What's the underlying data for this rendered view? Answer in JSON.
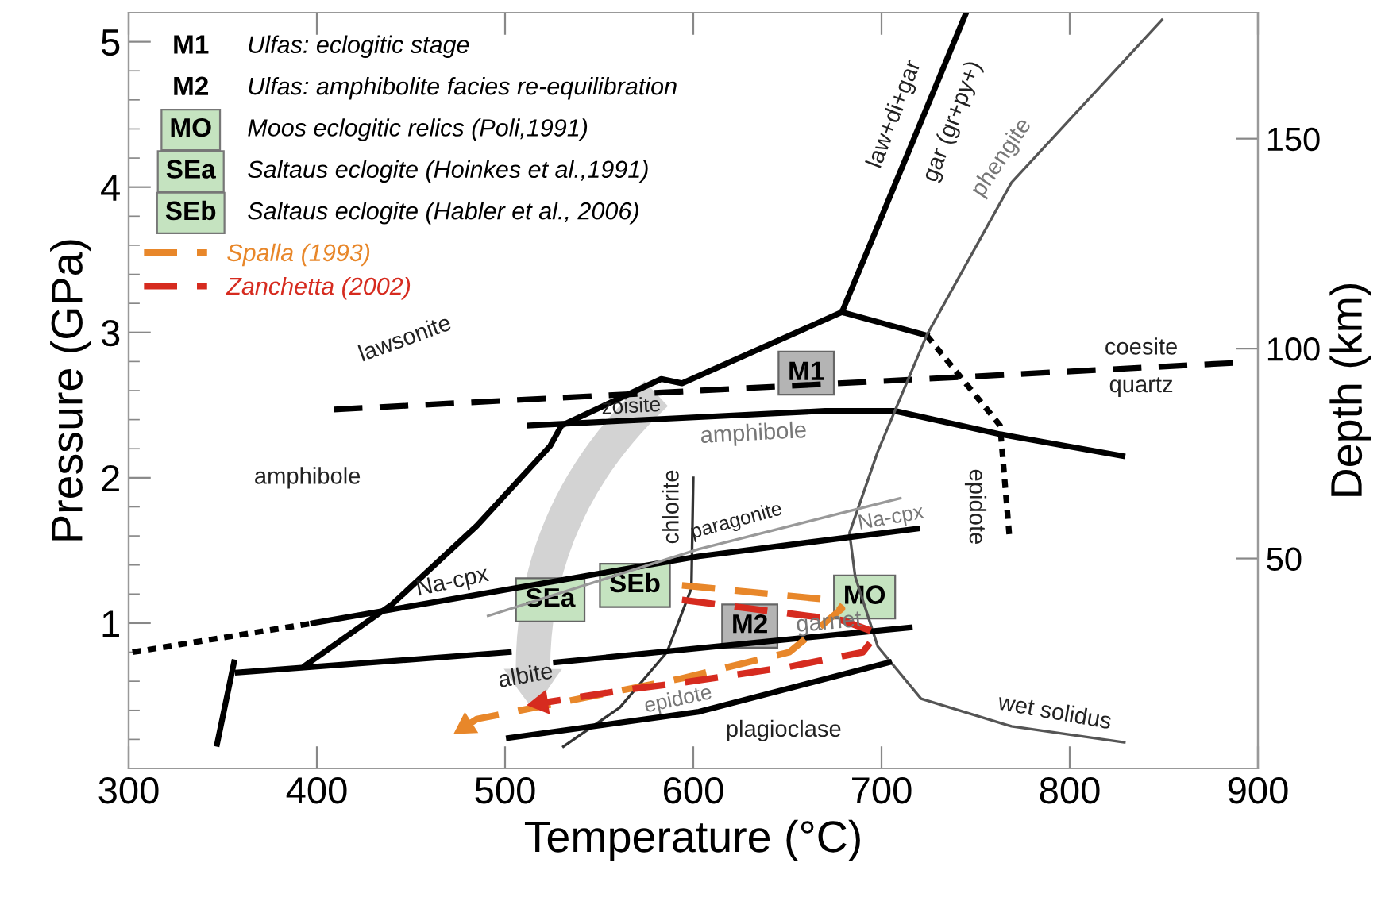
{
  "chart_data": {
    "type": "line",
    "xlabel": "Temperature (°C)",
    "ylabel": "Pressure (GPa)",
    "y2label": "Depth (km)",
    "xlim": [
      300,
      900
    ],
    "xticks": [
      300,
      400,
      500,
      600,
      700,
      800,
      900
    ],
    "ylim": [
      0,
      5.2
    ],
    "yticks": [
      1,
      2,
      3,
      4,
      5
    ],
    "y2lim": [
      0,
      180
    ],
    "y2ticks": [
      50,
      100,
      150
    ],
    "grid": false,
    "legend": "top left",
    "series": [
      {
        "color": "#000000",
        "line_style": "solid",
        "x": [
          394,
          440,
          485,
          524,
          530,
          583,
          594,
          679
        ],
        "values": [
          0.71,
          1.13,
          1.67,
          2.22,
          2.36,
          2.68,
          2.65,
          3.14
        ]
      },
      {
        "color": "#000000",
        "line_style": "solid",
        "x": [
          679,
          745
        ],
        "values": [
          3.14,
          5.2
        ]
      },
      {
        "color": "#000000",
        "line_style": "solid",
        "x": [
          679,
          724
        ],
        "values": [
          3.14,
          2.98
        ]
      },
      {
        "color": "#000000",
        "line_style": "dotted",
        "x": [
          724,
          763,
          768
        ],
        "values": [
          2.98,
          2.36,
          1.59
        ]
      },
      {
        "color": "#000000",
        "line_style": "solid",
        "x": [
          513,
          670,
          707,
          763,
          828
        ],
        "values": [
          2.36,
          2.46,
          2.46,
          2.3,
          2.15
        ]
      },
      {
        "color": "#000000",
        "line_style": "dashed",
        "x": [
          409,
          887
        ],
        "values": [
          2.47,
          2.79
        ]
      },
      {
        "color": "#555555",
        "line_style": "solid",
        "x": [
          849,
          769,
          724,
          698,
          683,
          686,
          698,
          721,
          769,
          829
        ],
        "values": [
          5.15,
          4.03,
          2.98,
          2.18,
          1.62,
          1.32,
          0.84,
          0.48,
          0.29,
          0.18
        ]
      },
      {
        "color": "#333333",
        "line_style": "solid",
        "x": [
          600,
          599,
          586,
          561,
          531
        ],
        "values": [
          2.0,
          1.24,
          0.8,
          0.42,
          0.15
        ]
      },
      {
        "color": "#000000",
        "line_style": "solid",
        "x": [
          398,
          603,
          719
        ],
        "values": [
          1.0,
          1.46,
          1.65
        ]
      },
      {
        "color": "#000000",
        "line_style": "dotted",
        "x": [
          302,
          398
        ],
        "values": [
          0.8,
          1.0
        ]
      },
      {
        "color": "#999999",
        "line_style": "solid",
        "x": [
          491,
          603,
          710
        ],
        "values": [
          1.05,
          1.51,
          1.86
        ]
      },
      {
        "color": "#000000",
        "line_style": "solid",
        "x": [
          347,
          356
        ],
        "values": [
          0.17,
          0.73
        ]
      },
      {
        "color": "#000000",
        "line_style": "solid",
        "x": [
          358,
          502
        ],
        "values": [
          0.66,
          0.8
        ]
      },
      {
        "color": "#000000",
        "line_style": "solid",
        "x": [
          527,
          715
        ],
        "values": [
          0.73,
          0.97
        ]
      },
      {
        "color": "#000000",
        "line_style": "solid",
        "x": [
          502,
          603,
          704
        ],
        "values": [
          0.21,
          0.39,
          0.73
        ]
      },
      {
        "name": "Spalla (1993)",
        "color": "#e8872a",
        "line_style": "dashed",
        "x": [
          594,
          673,
          679,
          651,
          594,
          485,
          479
        ],
        "values": [
          1.26,
          1.16,
          1.1,
          0.8,
          0.62,
          0.34,
          0.29
        ]
      },
      {
        "name": "Zanchetta (2002)",
        "color": "#d62b1f",
        "line_style": "dashed",
        "x": [
          594,
          679,
          698,
          690,
          651,
          594,
          569,
          519
        ],
        "values": [
          1.16,
          1.02,
          0.93,
          0.8,
          0.7,
          0.59,
          0.55,
          0.45
        ]
      }
    ],
    "annotations": [
      "M1",
      "Ulfas: eclogitic stage",
      "M2",
      "Ulfas: amphibolite facies re-equilibration",
      "MO",
      "Moos eclogitic relics (Poli,1991)",
      "SEa",
      "Saltaus eclogite (Hoinkes et al.,1991)",
      "SEb",
      "Saltaus eclogite (Habler et al., 2006)",
      "lawsonite",
      "zoisite",
      "amphibole",
      "amphibole",
      "coesite",
      "quartz",
      "law+di+gar",
      "gar (gr+py+)",
      "phengite",
      "epidote",
      "chlorite",
      "paragonite",
      "Na-cpx",
      "Na-cpx",
      "garnet",
      "wet solidus",
      "plagioclase",
      "albite",
      "epidote",
      "M1",
      "M2",
      "MO",
      "SEa",
      "SEb"
    ]
  }
}
